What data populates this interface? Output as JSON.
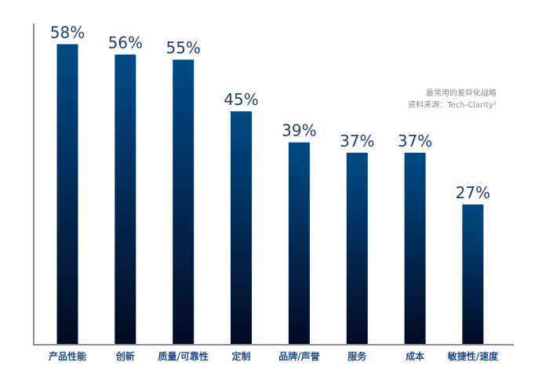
{
  "chart_data": {
    "type": "bar",
    "categories": [
      "产品性能",
      "创新",
      "质量/可靠性",
      "定制",
      "品牌/声誉",
      "服务",
      "成本",
      "敏捷性/速度"
    ],
    "values": [
      58,
      56,
      55,
      45,
      39,
      37,
      37,
      27
    ],
    "value_labels": [
      "58%",
      "56%",
      "55%",
      "45%",
      "39%",
      "37%",
      "37%",
      "27%"
    ],
    "unit": "%",
    "ylim": [
      0,
      62
    ],
    "grid": false,
    "annotations": [
      "最常用的差异化战略",
      "资料来源：Tech-Clarity²"
    ],
    "colors": {
      "bar_top": "#004b85",
      "bar_bottom": "#030a24",
      "value_label": "#1f3f6e",
      "category_label": "#1f4f8a",
      "axis": "#8c8c8c",
      "note": "#8a8a8a"
    }
  }
}
